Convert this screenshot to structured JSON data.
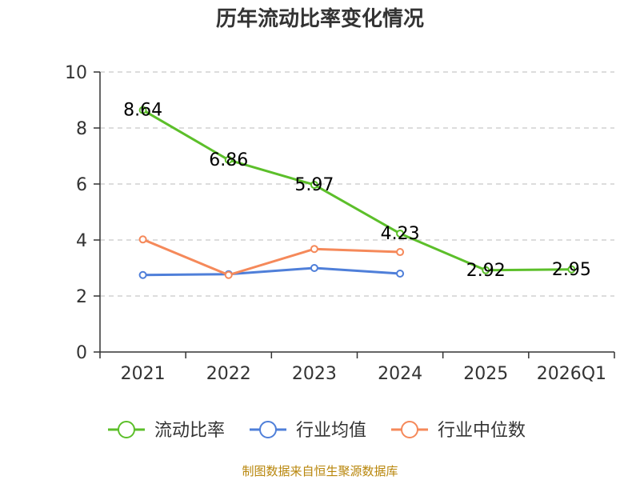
{
  "chart_data": {
    "type": "line",
    "title": "历年流动比率变化情况",
    "categories": [
      "2021",
      "2022",
      "2023",
      "2024",
      "2025",
      "2026Q1"
    ],
    "ylim": [
      0,
      10
    ],
    "yticks": [
      0,
      2,
      4,
      6,
      8,
      10
    ],
    "grid": true,
    "legend_position": "bottom",
    "series": [
      {
        "name": "流动比率",
        "color": "#5cbf2a",
        "values": [
          8.64,
          6.86,
          5.97,
          4.23,
          2.92,
          2.95
        ],
        "labels": [
          "8.64",
          "6.86",
          "5.97",
          "4.23",
          "2.92",
          "2.95"
        ]
      },
      {
        "name": "行业均值",
        "color": "#4f7fd9",
        "values": [
          2.75,
          2.78,
          3.0,
          2.8,
          null,
          null
        ]
      },
      {
        "name": "行业中位数",
        "color": "#f5895a",
        "values": [
          4.02,
          2.75,
          3.68,
          3.57,
          null,
          null
        ]
      }
    ]
  },
  "footer": {
    "source": "制图数据来自恒生聚源数据库"
  }
}
